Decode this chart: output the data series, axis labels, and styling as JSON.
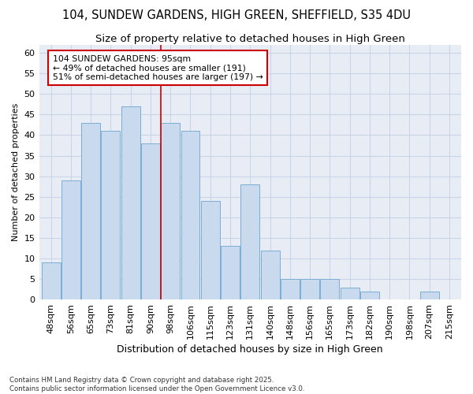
{
  "title_line1": "104, SUNDEW GARDENS, HIGH GREEN, SHEFFIELD, S35 4DU",
  "title_line2": "Size of property relative to detached houses in High Green",
  "xlabel": "Distribution of detached houses by size in High Green",
  "ylabel": "Number of detached properties",
  "categories": [
    "48sqm",
    "56sqm",
    "65sqm",
    "73sqm",
    "81sqm",
    "90sqm",
    "98sqm",
    "106sqm",
    "115sqm",
    "123sqm",
    "131sqm",
    "140sqm",
    "148sqm",
    "156sqm",
    "165sqm",
    "173sqm",
    "182sqm",
    "190sqm",
    "198sqm",
    "207sqm",
    "215sqm"
  ],
  "values": [
    9,
    29,
    43,
    41,
    47,
    38,
    43,
    41,
    24,
    13,
    28,
    12,
    5,
    5,
    5,
    3,
    2,
    0,
    0,
    2,
    0
  ],
  "bar_color": "#c9d9ee",
  "bar_edge_color": "#7badd4",
  "vline_x": 6.0,
  "vline_color": "#cc0000",
  "annotation_line1": "104 SUNDEW GARDENS: 95sqm",
  "annotation_line2": "← 49% of detached houses are smaller (191)",
  "annotation_line3": "51% of semi-detached houses are larger (197) →",
  "annotation_box_facecolor": "#ffffff",
  "annotation_box_edgecolor": "#cc0000",
  "grid_color": "#c8d4e8",
  "bg_color": "#e8edf5",
  "ylim": [
    0,
    62
  ],
  "yticks": [
    0,
    5,
    10,
    15,
    20,
    25,
    30,
    35,
    40,
    45,
    50,
    55,
    60
  ],
  "title1_fontsize": 10.5,
  "title2_fontsize": 9.5,
  "xlabel_fontsize": 9,
  "ylabel_fontsize": 8,
  "tick_fontsize": 8,
  "footer_line1": "Contains HM Land Registry data © Crown copyright and database right 2025.",
  "footer_line2": "Contains public sector information licensed under the Open Government Licence v3.0."
}
